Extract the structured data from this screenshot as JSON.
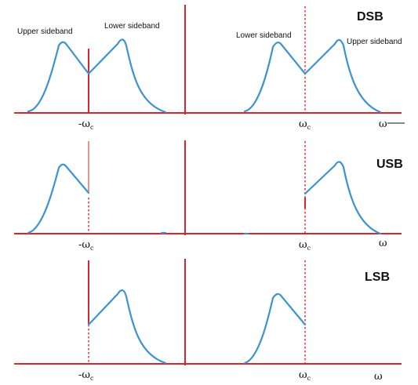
{
  "panels": [
    {
      "tag": "DSB",
      "labels": {
        "neg_left": "Upper sideband",
        "neg_right": "Lower sideband",
        "pos_left": "Lower sideband",
        "pos_right": "Upper sideband"
      },
      "ticks": {
        "neg_omega": "-ω",
        "pos_omega": "ω",
        "sub": "c",
        "axis": "ω"
      }
    },
    {
      "tag": "USB",
      "ticks": {
        "neg_omega": "-ω",
        "pos_omega": "ω",
        "sub": "c",
        "axis": "ω"
      }
    },
    {
      "tag": "LSB",
      "ticks": {
        "neg_omega": "-ω",
        "pos_omega": "ω",
        "sub": "c",
        "axis": "ω"
      }
    }
  ],
  "colors": {
    "axis": "#d9262c",
    "spectrum": "#3c93d0"
  }
}
